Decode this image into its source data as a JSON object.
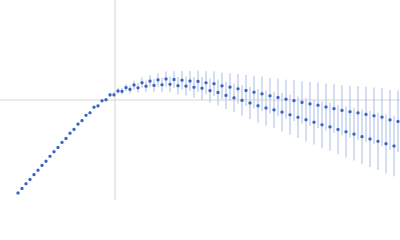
{
  "chart_data": {
    "type": "scatter",
    "x": [
      18,
      22,
      26,
      30,
      34,
      38,
      42,
      46,
      50,
      54,
      58,
      62,
      66,
      70,
      74,
      78,
      82,
      86,
      90,
      94,
      98,
      102,
      106,
      110,
      114,
      118,
      122,
      126,
      130,
      134,
      138,
      142,
      146,
      150,
      154,
      158,
      162,
      166,
      170,
      174,
      178,
      182,
      186,
      190,
      194,
      198,
      202,
      206,
      210,
      214,
      218,
      222,
      226,
      230,
      234,
      238,
      242,
      246,
      250,
      254,
      258,
      262,
      266,
      270,
      274,
      278,
      282,
      286,
      290,
      294,
      298,
      302,
      306,
      310,
      314,
      318,
      322,
      326,
      330,
      334,
      338,
      342,
      346,
      350,
      354,
      358,
      362,
      366,
      370,
      374,
      378,
      382,
      386,
      390,
      394,
      398
    ],
    "values": [
      7,
      11.5,
      16.3,
      20.5,
      25.4,
      29.8,
      34.6,
      38.8,
      43.7,
      48.3,
      52.5,
      57.6,
      61.5,
      66.8,
      70.6,
      75.9,
      79.4,
      84.7,
      87.2,
      92.8,
      94.1,
      99.2,
      100.3,
      105.1,
      105.2,
      109.0,
      108.7,
      112.4,
      110.6,
      115.0,
      112.2,
      117.3,
      113.8,
      118.9,
      114.6,
      120.1,
      115.2,
      121.0,
      115.7,
      120.5,
      114.3,
      119.8,
      113.9,
      119.0,
      112.7,
      118.6,
      111.8,
      117.2,
      109.4,
      116.3,
      107.5,
      114.1,
      104.6,
      112.9,
      102.1,
      111.2,
      99.6,
      109.5,
      97.0,
      107.8,
      94.3,
      106.1,
      92.0,
      104.2,
      90.1,
      102.5,
      87.9,
      100.8,
      85.2,
      99.4,
      82.7,
      97.6,
      80.3,
      96.1,
      77.8,
      94.8,
      75.2,
      93.0,
      73.1,
      91.4,
      70.5,
      89.6,
      68.2,
      88.3,
      65.9,
      87.1,
      63.4,
      85.6,
      61.0,
      84.2,
      58.7,
      82.9,
      56.3,
      80.1,
      54.0,
      78.5
    ],
    "errors": [
      0.5,
      0.5,
      0.5,
      0.5,
      0.5,
      0.5,
      0.5,
      0.5,
      0.5,
      0.5,
      0.5,
      0.5,
      0.5,
      0.5,
      0.5,
      0.5,
      0.5,
      0.5,
      0.5,
      0.5,
      0.8,
      1.2,
      1.6,
      2,
      2.4,
      2.8,
      3.2,
      3.6,
      4,
      4.4,
      4.8,
      5.2,
      5.6,
      6,
      6.4,
      6.8,
      7.2,
      7.6,
      8,
      8.4,
      8.8,
      9.2,
      9.6,
      10,
      10.4,
      10.8,
      11.2,
      11.6,
      12,
      12.4,
      12.8,
      13.2,
      13.6,
      14,
      14.4,
      14.8,
      15.2,
      15.6,
      16,
      16.4,
      16.8,
      17.2,
      17.6,
      18,
      18.4,
      18.8,
      19.2,
      19.6,
      20,
      20.4,
      20.8,
      21.2,
      21.6,
      22,
      22.4,
      22.8,
      23.2,
      23.6,
      24,
      24.4,
      24.8,
      25.2,
      25.6,
      26,
      26.4,
      26.8,
      27.2,
      27.6,
      28,
      28.4,
      28.8,
      29.2,
      29.6,
      30,
      30.4,
      30.8
    ],
    "color": "#3a64c0",
    "error_color": "#b8c8ea",
    "xlim": [
      0,
      400
    ],
    "ylim": [
      0,
      200
    ],
    "crosshair": {
      "x": 115,
      "y": 100
    }
  }
}
